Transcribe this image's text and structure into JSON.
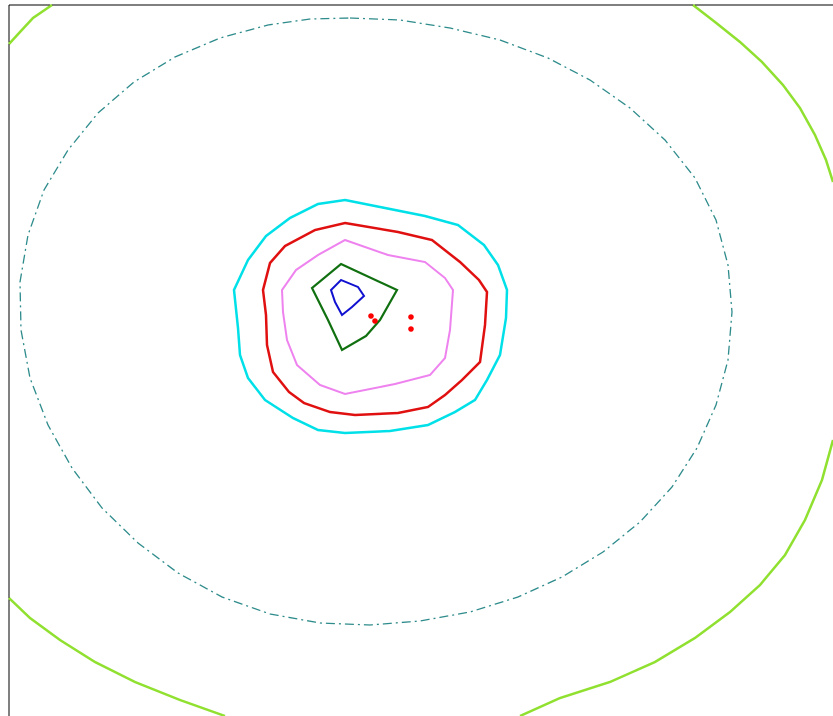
{
  "chart_data": {
    "type": "contour",
    "title": "",
    "xlabel": "",
    "ylabel": "",
    "grid": false,
    "legend": "none",
    "contours": [
      {
        "id": "outer",
        "color": "#90e030",
        "style": "solid"
      },
      {
        "id": "dashdot",
        "color": "#2e8b8b",
        "style": "dashdot"
      },
      {
        "id": "cyan",
        "color": "#00e0e8",
        "style": "solid"
      },
      {
        "id": "red",
        "color": "#e01010",
        "style": "solid"
      },
      {
        "id": "violet",
        "color": "#ee82ee",
        "style": "solid"
      },
      {
        "id": "green",
        "color": "#107010",
        "style": "solid"
      },
      {
        "id": "blue",
        "color": "#1010d0",
        "style": "solid"
      }
    ],
    "points": [
      {
        "id": "p1",
        "color": "#ff0000"
      },
      {
        "id": "p2",
        "color": "#ff0000"
      },
      {
        "id": "p3",
        "color": "#ff0000"
      },
      {
        "id": "p4",
        "color": "#ff0000"
      }
    ]
  }
}
